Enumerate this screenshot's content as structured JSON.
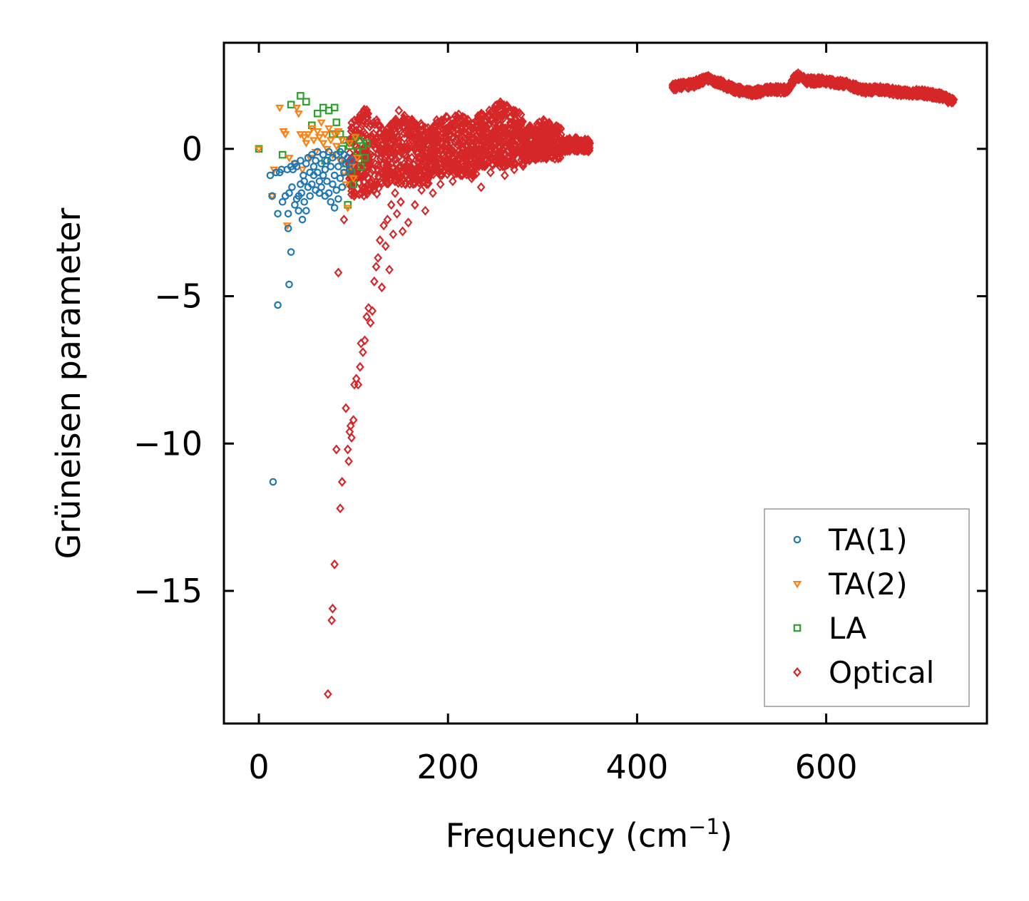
{
  "chart_data": {
    "type": "scatter",
    "title": "",
    "xlabel": "Frequency (cm",
    "xlabel_sup": "−1",
    "xlabel_close": ")",
    "ylabel": "Grüneisen parameter",
    "xlim": [
      -37,
      770
    ],
    "ylim": [
      -19.5,
      3.6
    ],
    "xticks": [
      0,
      200,
      400,
      600
    ],
    "xtick_labels": [
      "0",
      "200",
      "400",
      "600"
    ],
    "yticks": [
      0,
      -5,
      -10,
      -15
    ],
    "ytick_labels": [
      "0",
      "−5",
      "−10",
      "−15"
    ],
    "legend_position": "lower-right",
    "series": [
      {
        "name": "TA(1)",
        "marker": "circle",
        "color": "#1f77b4",
        "points": [
          [
            12,
            -0.9
          ],
          [
            14,
            -1.6
          ],
          [
            15,
            -11.3
          ],
          [
            18,
            -0.8
          ],
          [
            20,
            -2.2
          ],
          [
            20,
            -5.3
          ],
          [
            22,
            -0.8
          ],
          [
            24,
            -0.7
          ],
          [
            25,
            -1.8
          ],
          [
            28,
            -1.6
          ],
          [
            30,
            -0.7
          ],
          [
            31,
            -2.2
          ],
          [
            31,
            -2.7
          ],
          [
            32,
            -4.6
          ],
          [
            32,
            -1.5
          ],
          [
            34,
            -0.6
          ],
          [
            34,
            -3.5
          ],
          [
            35,
            -1.3
          ],
          [
            36,
            -0.7
          ],
          [
            38,
            -0.5
          ],
          [
            38,
            -1.9
          ],
          [
            40,
            -0.6
          ],
          [
            40,
            -1.7
          ],
          [
            42,
            -1.6
          ],
          [
            42,
            -2.1
          ],
          [
            44,
            -0.4
          ],
          [
            44,
            -1.2
          ],
          [
            45,
            -1.5
          ],
          [
            46,
            -2.4
          ],
          [
            47,
            -0.9
          ],
          [
            48,
            -1.1
          ],
          [
            48,
            -1.8
          ],
          [
            50,
            -0.5
          ],
          [
            50,
            -2.1
          ],
          [
            52,
            -0.3
          ],
          [
            52,
            -1.3
          ],
          [
            54,
            -0.8
          ],
          [
            54,
            -1.6
          ],
          [
            56,
            -0.2
          ],
          [
            56,
            -1.2
          ],
          [
            58,
            -0.6
          ],
          [
            58,
            -0.9
          ],
          [
            60,
            -0.4
          ],
          [
            60,
            -1.4
          ],
          [
            62,
            -0.1
          ],
          [
            62,
            -0.8
          ],
          [
            64,
            -1.1
          ],
          [
            64,
            -1.5
          ],
          [
            66,
            -0.5
          ],
          [
            66,
            -1.3
          ],
          [
            68,
            -0.2
          ],
          [
            68,
            -0.9
          ],
          [
            70,
            -0.7
          ],
          [
            70,
            -1.6
          ],
          [
            72,
            -0.4
          ],
          [
            72,
            -1.1
          ],
          [
            74,
            -0.1
          ],
          [
            74,
            -1.5
          ],
          [
            76,
            -0.6
          ],
          [
            76,
            -1.8
          ],
          [
            78,
            -0.3
          ],
          [
            78,
            -1.2
          ],
          [
            80,
            -0.9
          ],
          [
            80,
            -2.0
          ],
          [
            82,
            -0.2
          ],
          [
            82,
            -1.4
          ],
          [
            84,
            -0.6
          ],
          [
            84,
            -1.7
          ],
          [
            86,
            -0.1
          ],
          [
            86,
            -1.0
          ],
          [
            88,
            -0.4
          ],
          [
            88,
            -1.3
          ],
          [
            90,
            -0.2
          ],
          [
            90,
            -0.8
          ],
          [
            92,
            -0.5
          ],
          [
            94,
            -0.3
          ],
          [
            96,
            -0.7
          ],
          [
            98,
            -0.4
          ]
        ]
      },
      {
        "name": "TA(2)",
        "marker": "triangle-down",
        "color": "#ff7f0e",
        "points": [
          [
            0,
            0.0
          ],
          [
            14,
            -1.6
          ],
          [
            16,
            -0.7
          ],
          [
            22,
            1.4
          ],
          [
            26,
            0.6
          ],
          [
            28,
            0.5
          ],
          [
            30,
            -2.6
          ],
          [
            32,
            -0.3
          ],
          [
            38,
            -0.5
          ],
          [
            40,
            1.4
          ],
          [
            42,
            1.2
          ],
          [
            44,
            0.5
          ],
          [
            46,
            -0.7
          ],
          [
            48,
            0.4
          ],
          [
            50,
            0.2
          ],
          [
            52,
            0.5
          ],
          [
            54,
            -0.3
          ],
          [
            56,
            0.7
          ],
          [
            58,
            0.3
          ],
          [
            60,
            -0.1
          ],
          [
            62,
            0.6
          ],
          [
            64,
            0.4
          ],
          [
            66,
            0.9
          ],
          [
            68,
            0.2
          ],
          [
            70,
            0.5
          ],
          [
            72,
            0.0
          ],
          [
            74,
            0.7
          ],
          [
            76,
            0.3
          ],
          [
            78,
            -0.2
          ],
          [
            80,
            0.5
          ],
          [
            82,
            0.1
          ],
          [
            84,
            0.6
          ],
          [
            86,
            -0.4
          ],
          [
            88,
            0.3
          ],
          [
            90,
            -0.8
          ],
          [
            92,
            -1.2
          ],
          [
            94,
            -2.0
          ],
          [
            96,
            0.2
          ],
          [
            98,
            -0.6
          ],
          [
            100,
            -1.0
          ],
          [
            102,
            0.4
          ],
          [
            104,
            -0.3
          ]
        ]
      },
      {
        "name": "LA",
        "marker": "square",
        "color": "#2ca02c",
        "points": [
          [
            0,
            0.0
          ],
          [
            25,
            -0.2
          ],
          [
            34,
            1.5
          ],
          [
            44,
            1.8
          ],
          [
            50,
            1.6
          ],
          [
            56,
            0.8
          ],
          [
            62,
            1.2
          ],
          [
            68,
            1.4
          ],
          [
            70,
            -0.4
          ],
          [
            74,
            1.3
          ],
          [
            78,
            0.5
          ],
          [
            80,
            1.4
          ],
          [
            82,
            0.9
          ],
          [
            84,
            -0.2
          ],
          [
            86,
            0.5
          ],
          [
            88,
            0.0
          ],
          [
            90,
            0.3
          ],
          [
            92,
            -0.5
          ],
          [
            94,
            -1.9
          ],
          [
            96,
            0.1
          ],
          [
            98,
            -0.8
          ],
          [
            100,
            -1.2
          ],
          [
            102,
            0.4
          ],
          [
            104,
            -0.1
          ],
          [
            106,
            0.3
          ],
          [
            108,
            -0.6
          ],
          [
            110,
            0.1
          ],
          [
            112,
            -0.3
          ],
          [
            114,
            0.2
          ]
        ]
      },
      {
        "name": "Optical",
        "marker": "diamond",
        "color": "#d62728",
        "points": [
          [
            73,
            -18.5
          ],
          [
            77,
            -16.0
          ],
          [
            78,
            -15.6
          ],
          [
            80,
            -14.1
          ],
          [
            82,
            -10.2
          ],
          [
            84,
            -4.2
          ],
          [
            86,
            -12.2
          ],
          [
            88,
            -11.3
          ],
          [
            90,
            -2.4
          ],
          [
            92,
            -8.8
          ],
          [
            94,
            -10.2
          ],
          [
            95,
            -10.6
          ],
          [
            96,
            -9.6
          ],
          [
            97,
            -9.4
          ],
          [
            98,
            -9.8
          ],
          [
            100,
            -9.2
          ],
          [
            101,
            -8.0
          ],
          [
            103,
            -7.8
          ],
          [
            105,
            -8.0
          ],
          [
            107,
            -7.4
          ],
          [
            108,
            -6.6
          ],
          [
            110,
            -6.9
          ],
          [
            112,
            -6.5
          ],
          [
            114,
            -5.7
          ],
          [
            116,
            -5.4
          ],
          [
            118,
            -5.9
          ],
          [
            120,
            -5.5
          ],
          [
            122,
            -4.5
          ],
          [
            124,
            -4.0
          ],
          [
            126,
            -3.7
          ],
          [
            128,
            -3.1
          ],
          [
            130,
            -4.7
          ],
          [
            132,
            -2.6
          ],
          [
            134,
            -3.3
          ],
          [
            136,
            -2.4
          ],
          [
            138,
            -4.1
          ],
          [
            140,
            -1.9
          ],
          [
            142,
            -2.9
          ],
          [
            144,
            -1.5
          ],
          [
            146,
            -2.2
          ],
          [
            148,
            1.3
          ],
          [
            150,
            -1.8
          ],
          [
            152,
            -2.8
          ],
          [
            155,
            -1.2
          ],
          [
            158,
            -2.5
          ],
          [
            162,
            -0.8
          ],
          [
            165,
            -1.9
          ],
          [
            168,
            -0.3
          ],
          [
            172,
            -1.4
          ],
          [
            176,
            -2.1
          ],
          [
            180,
            -0.9
          ],
          [
            184,
            -1.5
          ],
          [
            188,
            -0.4
          ],
          [
            192,
            -1.2
          ],
          [
            196,
            -0.7
          ],
          [
            200,
            -0.2
          ],
          [
            205,
            -1.1
          ],
          [
            210,
            -0.5
          ],
          [
            215,
            -0.9
          ],
          [
            220,
            -0.3
          ],
          [
            225,
            -1.0
          ],
          [
            230,
            -0.6
          ],
          [
            235,
            -1.3
          ],
          [
            240,
            -0.4
          ],
          [
            245,
            -0.8
          ],
          [
            250,
            -0.2
          ],
          [
            255,
            -0.6
          ],
          [
            260,
            -0.9
          ],
          [
            265,
            -0.3
          ],
          [
            270,
            -0.7
          ],
          [
            275,
            -0.1
          ],
          [
            280,
            -0.5
          ],
          [
            290,
            -0.3
          ],
          [
            300,
            -0.2
          ],
          [
            310,
            -0.1
          ],
          [
            320,
            0.0
          ],
          [
            330,
            0.1
          ],
          [
            340,
            0.2
          ],
          [
            350,
            0.2
          ]
        ]
      }
    ],
    "optical_bands": [
      {
        "x0": 95,
        "x1": 130,
        "ytop": 1.4,
        "ybot": -1.6
      },
      {
        "x0": 130,
        "x1": 180,
        "ytop": 1.2,
        "ybot": -1.2
      },
      {
        "x0": 180,
        "x1": 230,
        "ytop": 1.3,
        "ybot": -0.9
      },
      {
        "x0": 230,
        "x1": 280,
        "ytop": 1.6,
        "ybot": -0.6
      },
      {
        "x0": 280,
        "x1": 320,
        "ytop": 1.0,
        "ybot": -0.4
      },
      {
        "x0": 320,
        "x1": 350,
        "ytop": 0.4,
        "ybot": -0.1
      }
    ],
    "optical_high_band": {
      "x": [
        437,
        460,
        475,
        490,
        505,
        520,
        540,
        560,
        568,
        580,
        600,
        620,
        640,
        660,
        680,
        700,
        720,
        735
      ],
      "y": [
        2.1,
        2.2,
        2.4,
        2.2,
        2.0,
        1.9,
        2.0,
        2.0,
        2.5,
        2.3,
        2.3,
        2.2,
        2.0,
        2.0,
        1.9,
        1.9,
        1.8,
        1.6
      ],
      "spread": 0.22
    }
  }
}
